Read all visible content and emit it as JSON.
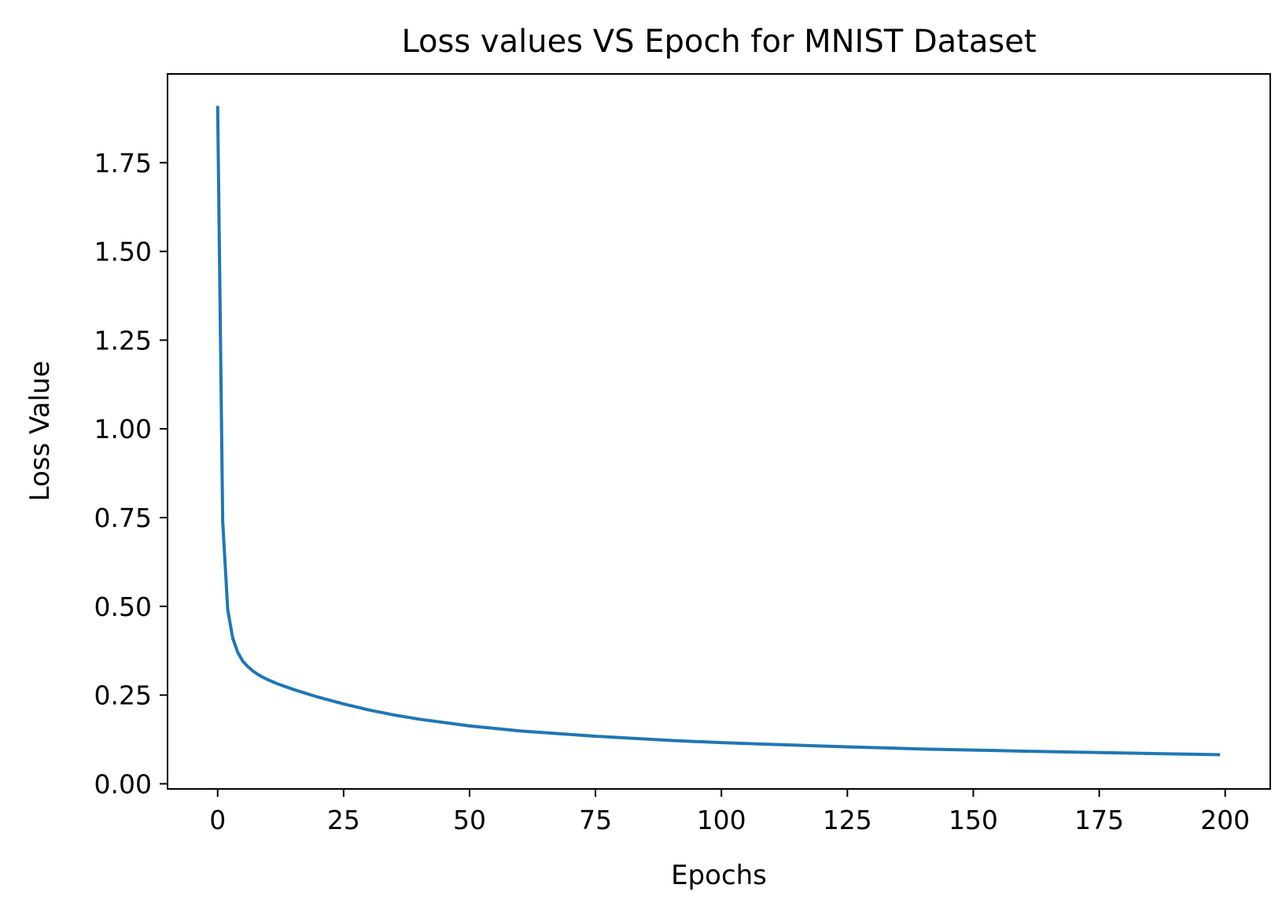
{
  "chart_data": {
    "type": "line",
    "title": "Loss values VS Epoch for MNIST Dataset",
    "xlabel": "Epochs",
    "ylabel": "Loss Value",
    "xlim": [
      -9.95,
      208.95
    ],
    "ylim": [
      -0.0145,
      2.0
    ],
    "grid": false,
    "legend": "none",
    "xticks": [
      0,
      25,
      50,
      75,
      100,
      125,
      150,
      175,
      200
    ],
    "xtick_labels": [
      "0",
      "25",
      "50",
      "75",
      "100",
      "125",
      "150",
      "175",
      "200"
    ],
    "yticks": [
      0.0,
      0.25,
      0.5,
      0.75,
      1.0,
      1.25,
      1.5,
      1.75
    ],
    "ytick_labels": [
      "0.00",
      "0.25",
      "0.50",
      "0.75",
      "1.00",
      "1.25",
      "1.50",
      "1.75"
    ],
    "series": [
      {
        "name": "loss",
        "color": "#1f77b4",
        "x": [
          0,
          1,
          2,
          3,
          4,
          5,
          6,
          7,
          8,
          9,
          10,
          12,
          15,
          20,
          25,
          30,
          35,
          40,
          50,
          60,
          75,
          90,
          100,
          110,
          125,
          140,
          150,
          160,
          175,
          190,
          199
        ],
        "y": [
          1.91,
          0.74,
          0.49,
          0.41,
          0.37,
          0.345,
          0.33,
          0.318,
          0.308,
          0.3,
          0.293,
          0.281,
          0.266,
          0.244,
          0.225,
          0.208,
          0.194,
          0.182,
          0.163,
          0.149,
          0.134,
          0.122,
          0.116,
          0.111,
          0.104,
          0.098,
          0.095,
          0.092,
          0.088,
          0.084,
          0.082
        ]
      }
    ]
  }
}
